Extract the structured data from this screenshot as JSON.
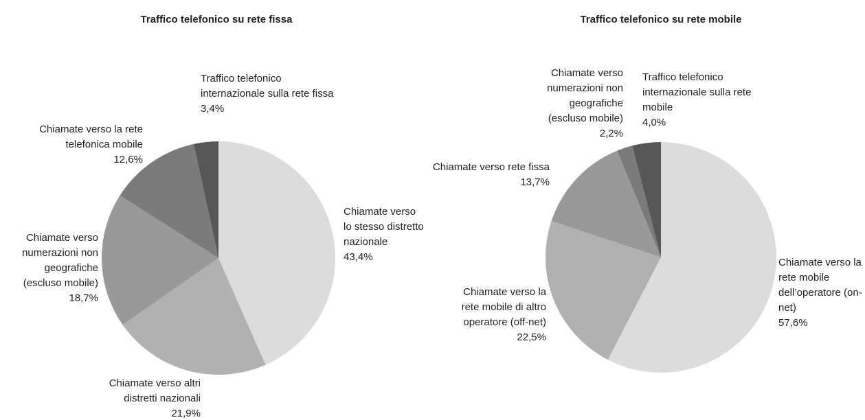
{
  "chart_data": [
    {
      "type": "pie",
      "title": "Traffico telefonico su rete fissa",
      "categories": [
        "Chiamate verso lo stesso distretto nazionale",
        "Chiamate verso altri distretti nazionali",
        "Chiamate verso numerazioni non geografiche (escluso mobile)",
        "Chiamate verso la rete telefonica mobile",
        "Traffico telefonico internazionale sulla rete fissa"
      ],
      "values": [
        43.4,
        21.9,
        18.7,
        12.6,
        3.4
      ],
      "value_labels": [
        "43,4%",
        "21,9%",
        "18,7%",
        "12,6%",
        "3,4%"
      ],
      "colors": [
        "#dcdcdc",
        "#b1b1b1",
        "#999999",
        "#7b7b7b",
        "#575757"
      ]
    },
    {
      "type": "pie",
      "title": "Traffico telefonico su rete mobile",
      "categories": [
        "Chiamate verso la rete mobile dell’operatore (on-net)",
        "Chiamate verso la rete mobile di altro operatore (off-net)",
        "Chiamate verso rete fissa",
        "Chiamate verso numerazioni non geografiche (escluso mobile)",
        "Traffico telefonico internazionale sulla rete mobile"
      ],
      "values": [
        57.6,
        22.5,
        13.7,
        2.2,
        4.0
      ],
      "value_labels": [
        "57,6%",
        "22,5%",
        "13,7%",
        "2,2%",
        "4,0%"
      ],
      "colors": [
        "#dcdcdc",
        "#b1b1b1",
        "#999999",
        "#7b7b7b",
        "#575757"
      ]
    }
  ]
}
